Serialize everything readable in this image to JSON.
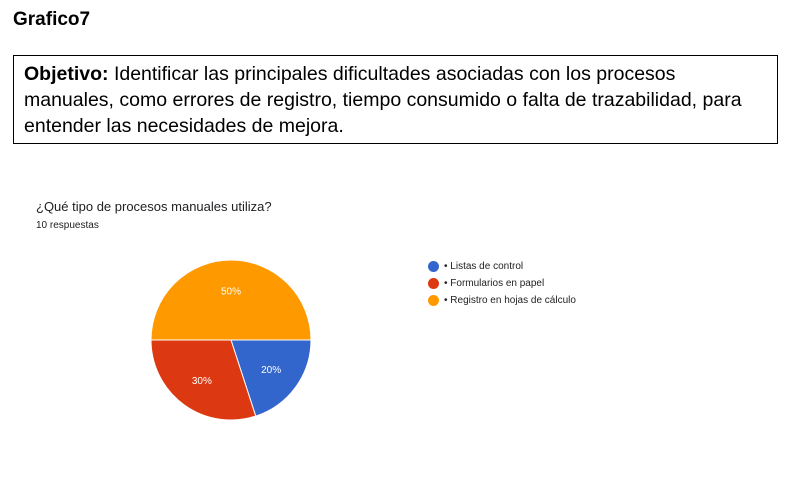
{
  "page": {
    "title": "Grafico7",
    "objective_label": "Objetivo:",
    "objective_text": "Identificar las principales dificultades asociadas con los procesos manuales, como errores de registro, tiempo consumido o falta de trazabilidad, para entender las necesidades de mejora."
  },
  "chart": {
    "question": "¿Qué tipo de procesos manuales utiliza?",
    "responses": "10 respuestas"
  },
  "chart_data": {
    "type": "pie",
    "title": "¿Qué tipo de procesos manuales utiliza?",
    "subtitle": "10 respuestas",
    "legend_position": "right",
    "slices": [
      {
        "label": "• Listas de control",
        "value": 20,
        "display": "20%",
        "color": "#3366cc"
      },
      {
        "label": "• Formularios en papel",
        "value": 30,
        "display": "30%",
        "color": "#dc3912"
      },
      {
        "label": "• Registro en hojas de cálculo",
        "value": 50,
        "display": "50%",
        "color": "#ff9900"
      }
    ]
  }
}
